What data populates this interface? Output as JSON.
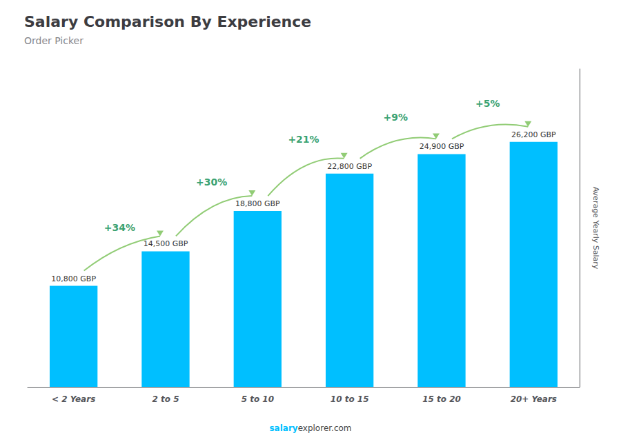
{
  "chart_data": {
    "type": "bar",
    "title": "Salary Comparison By Experience",
    "subtitle": "Order Picker",
    "ylabel": "Average Yearly Salary",
    "categories": [
      "< 2 Years",
      "2 to 5",
      "5 to 10",
      "10 to 15",
      "15 to 20",
      "20+ Years"
    ],
    "values": [
      10800,
      14500,
      18800,
      22800,
      24900,
      26200
    ],
    "value_labels": [
      "10,800 GBP",
      "14,500 GBP",
      "18,800 GBP",
      "22,800 GBP",
      "24,900 GBP",
      "26,200 GBP"
    ],
    "data_labels": true,
    "annotations": [
      "+34%",
      "+30%",
      "+21%",
      "+9%",
      "+5%"
    ],
    "footer": [
      "salary",
      "explorer.com"
    ],
    "color": "#00BFFF",
    "ylim": [
      0,
      34000
    ],
    "tick_labels": "x",
    "grid": false
  }
}
